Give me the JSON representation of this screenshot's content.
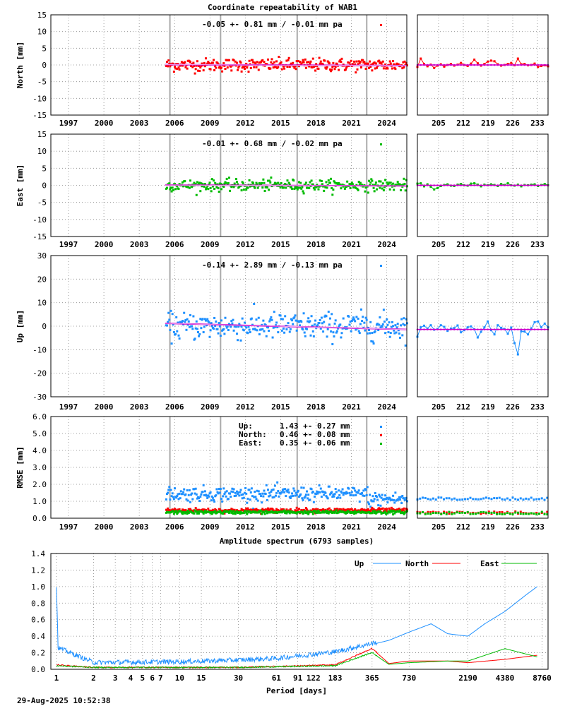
{
  "title": "Coordinate repeatability of WAB1",
  "footer": "29-Aug-2025 10:52:38",
  "colors": {
    "north": "#ff0000",
    "east": "#00bb00",
    "up": "#1e90ff",
    "trend": "#cc00cc",
    "grid": "#888888",
    "event": "#aaaaaa"
  },
  "chart_data": [
    {
      "id": "north",
      "type": "scatter",
      "ylabel": "North [mm]",
      "ylim": [
        -15,
        15
      ],
      "yticks": [
        15,
        10,
        5,
        0,
        -5,
        -10,
        -15
      ],
      "xticks": [
        "1997",
        "2000",
        "2003",
        "2006",
        "2009",
        "2012",
        "2015",
        "2018",
        "2021",
        "2024"
      ],
      "xticks_zoom": [
        "205",
        "212",
        "219",
        "226",
        "233"
      ],
      "annotation": "-0.05 +- 0.81 mm / -0.01 mm pa",
      "series": [
        {
          "mean": 0.0,
          "sd": 0.81,
          "trend": -0.01
        }
      ],
      "events": [
        2005.6,
        2009.9,
        2016.4,
        2022.3
      ],
      "data_start": 2005.2,
      "data_end": 2025.7,
      "zoom_values": [
        -0.6,
        1.9,
        0.3,
        -0.4,
        0.1,
        -0.9,
        -0.2,
        0.2,
        -0.5,
        0.0,
        0.3,
        -0.2,
        0.1,
        0.6,
        0.0,
        -0.3,
        0.4,
        1.6,
        0.5,
        -0.2,
        0.3,
        1.0,
        1.3,
        1.1,
        0.2,
        -0.2,
        0.0,
        0.3,
        0.6,
        -0.1,
        1.9,
        0.2,
        0.3,
        -0.1,
        0.0,
        0.4,
        -0.6,
        -0.3,
        -0.1,
        -0.4
      ]
    },
    {
      "id": "east",
      "type": "scatter",
      "ylabel": "East [mm]",
      "ylim": [
        -15,
        15
      ],
      "yticks": [
        15,
        10,
        5,
        0,
        -5,
        -10,
        -15
      ],
      "xticks": [
        "1997",
        "2000",
        "2003",
        "2006",
        "2009",
        "2012",
        "2015",
        "2018",
        "2021",
        "2024"
      ],
      "xticks_zoom": [
        "205",
        "212",
        "219",
        "226",
        "233"
      ],
      "annotation": "-0.01 +- 0.68 mm / -0.02 mm pa",
      "series": [
        {
          "mean": 0.0,
          "sd": 0.68,
          "trend": -0.02
        }
      ],
      "events": [
        2005.6,
        2009.9,
        2016.4,
        2022.3
      ],
      "data_start": 2005.2,
      "data_end": 2025.7,
      "zoom_values": [
        0.5,
        0.6,
        -0.3,
        0.3,
        -0.4,
        -1.2,
        -0.8,
        -0.2,
        0.1,
        0.3,
        -0.1,
        -0.2,
        0.2,
        0.4,
        0.0,
        -0.1,
        0.5,
        0.6,
        0.2,
        -0.3,
        0.2,
        0.0,
        0.3,
        0.1,
        -0.2,
        0.4,
        0.1,
        0.6,
        0.0,
        -0.1,
        0.2,
        -0.3,
        0.1,
        0.0,
        0.2,
        0.3,
        -0.2,
        0.1,
        0.4,
        0.0
      ]
    },
    {
      "id": "up",
      "type": "scatter",
      "ylabel": "Up [mm]",
      "ylim": [
        -30,
        30
      ],
      "yticks": [
        30,
        20,
        10,
        0,
        -10,
        -20,
        -30
      ],
      "xticks": [
        "1997",
        "2000",
        "2003",
        "2006",
        "2009",
        "2012",
        "2015",
        "2018",
        "2021",
        "2024"
      ],
      "xticks_zoom": [
        "205",
        "212",
        "219",
        "226",
        "233"
      ],
      "annotation": "-0.14 +- 2.89 mm / -0.13 mm pa",
      "series": [
        {
          "mean": 0.0,
          "sd": 2.89,
          "trend": -0.13
        }
      ],
      "events": [
        2005.6,
        2009.9,
        2016.4,
        2022.3
      ],
      "data_start": 2005.2,
      "data_end": 2025.7,
      "zoom_values": [
        -4.5,
        -0.5,
        0.2,
        -1.0,
        0.4,
        -1.5,
        -1.2,
        0.4,
        -0.3,
        -2.0,
        -1.0,
        -0.8,
        0.3,
        -2.6,
        -1.7,
        -0.5,
        -0.1,
        -1.3,
        -4.8,
        -2.4,
        -0.5,
        2.0,
        -1.7,
        -3.5,
        0.4,
        -0.7,
        -1.2,
        -3.2,
        -0.6,
        -7.2,
        -12.0,
        -2.2,
        -2.3,
        -3.5,
        -0.9,
        1.7,
        2.0,
        -0.4,
        1.1,
        -0.5
      ]
    },
    {
      "id": "rmse",
      "type": "scatter",
      "ylabel": "RMSE [mm]",
      "ylim": [
        0,
        6
      ],
      "yticks": [
        "6.0",
        "5.0",
        "4.0",
        "3.0",
        "2.0",
        "1.0",
        "0.0"
      ],
      "xticks": [
        "1997",
        "2000",
        "2003",
        "2006",
        "2009",
        "2012",
        "2015",
        "2018",
        "2021",
        "2024"
      ],
      "xticks_zoom": [
        "205",
        "212",
        "219",
        "226",
        "233"
      ],
      "legend": [
        {
          "name": "Up:",
          "value": "1.43 +- 0.27 mm",
          "color": "#1e90ff"
        },
        {
          "name": "North:",
          "value": "0.46 +- 0.08 mm",
          "color": "#ff0000"
        },
        {
          "name": "East:",
          "value": "0.35 +- 0.06 mm",
          "color": "#00bb00"
        }
      ],
      "series": [
        {
          "name": "Up",
          "mean": 1.43,
          "sd": 0.27
        },
        {
          "name": "North",
          "mean": 0.46,
          "sd": 0.08
        },
        {
          "name": "East",
          "mean": 0.35,
          "sd": 0.06
        }
      ],
      "events": [
        2005.6,
        2009.9,
        2016.4,
        2022.3
      ],
      "data_start": 2005.2,
      "data_end": 2025.7,
      "zoom_series": [
        {
          "name": "Up",
          "base": 1.15
        },
        {
          "name": "North",
          "base": 0.33
        },
        {
          "name": "East",
          "base": 0.3
        }
      ]
    },
    {
      "id": "spectrum",
      "type": "line",
      "title": "Amplitude spectrum (6793 samples)",
      "xlabel": "Period [days]",
      "ylim": [
        0,
        1.4
      ],
      "yticks": [
        "1.4",
        "1.2",
        "1.0",
        "0.8",
        "0.6",
        "0.4",
        "0.2",
        "0.0"
      ],
      "xticks": [
        "1",
        "2",
        "3",
        "4",
        "5",
        "6",
        "7",
        "10",
        "15",
        "30",
        "61",
        "91",
        "122",
        "183",
        "365",
        "730",
        "2190",
        "4380",
        "8760"
      ],
      "legend": [
        {
          "name": "Up",
          "color": "#1e90ff"
        },
        {
          "name": "North",
          "color": "#ff0000"
        },
        {
          "name": "East",
          "color": "#00bb00"
        }
      ],
      "series": [
        {
          "name": "Up",
          "points": [
            [
              1.0,
              1.0
            ],
            [
              1.03,
              0.25
            ],
            [
              2,
              0.07
            ],
            [
              10,
              0.08
            ],
            [
              30,
              0.1
            ],
            [
              61,
              0.12
            ],
            [
              91,
              0.15
            ],
            [
              183,
              0.2
            ],
            [
              365,
              0.3
            ],
            [
              500,
              0.35
            ],
            [
              730,
              0.45
            ],
            [
              1100,
              0.55
            ],
            [
              1500,
              0.43
            ],
            [
              2190,
              0.4
            ],
            [
              3000,
              0.55
            ],
            [
              4380,
              0.7
            ],
            [
              6500,
              0.9
            ],
            [
              8000,
              1.0
            ]
          ]
        },
        {
          "name": "North",
          "points": [
            [
              1.0,
              0.05
            ],
            [
              2,
              0.02
            ],
            [
              30,
              0.02
            ],
            [
              183,
              0.05
            ],
            [
              365,
              0.25
            ],
            [
              500,
              0.07
            ],
            [
              730,
              0.1
            ],
            [
              1500,
              0.1
            ],
            [
              2190,
              0.08
            ],
            [
              4380,
              0.12
            ],
            [
              8000,
              0.17
            ]
          ]
        },
        {
          "name": "East",
          "points": [
            [
              1.0,
              0.04
            ],
            [
              2,
              0.02
            ],
            [
              30,
              0.02
            ],
            [
              183,
              0.04
            ],
            [
              365,
              0.2
            ],
            [
              500,
              0.06
            ],
            [
              730,
              0.08
            ],
            [
              1500,
              0.1
            ],
            [
              2190,
              0.1
            ],
            [
              4380,
              0.25
            ],
            [
              8000,
              0.15
            ]
          ]
        }
      ]
    }
  ]
}
